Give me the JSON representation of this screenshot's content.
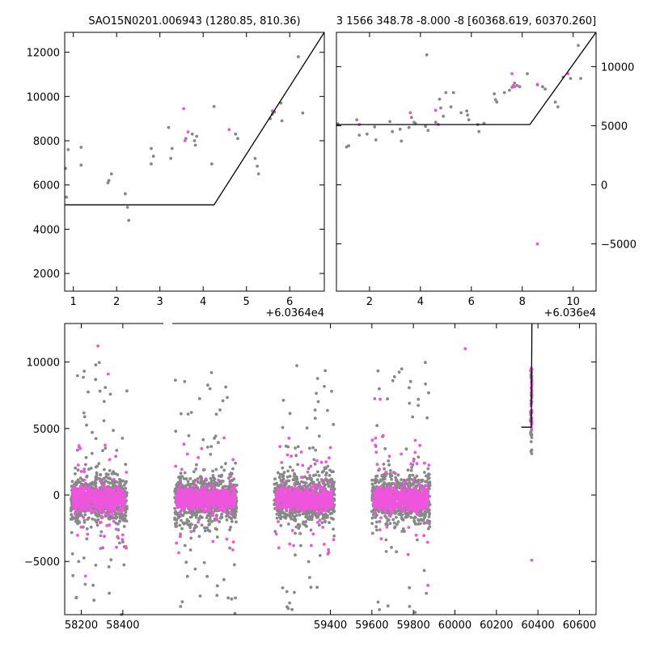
{
  "colors": {
    "grey": "#888888",
    "magenta": "#ee55dd",
    "line": "#000000"
  },
  "chart_data": [
    {
      "id": "top-left",
      "type": "scatter",
      "title": "SAO15N0201.006943 (1280.85, 810.36)",
      "xlim": [
        0.8,
        6.8
      ],
      "ylim": [
        1200,
        12900
      ],
      "offset_label": "+6.0364e4",
      "x_ticks": [
        1,
        2,
        3,
        4,
        5,
        6
      ],
      "x_tick_labels": [
        "1",
        "2",
        "3",
        "4",
        "5",
        "6"
      ],
      "y_ticks": [
        2000,
        4000,
        6000,
        8000,
        10000,
        12000
      ],
      "y_tick_labels": [
        "2000",
        "4000",
        "6000",
        "8000",
        "10000",
        "12000"
      ],
      "y_axis_side": "left",
      "grey_points": [
        [
          0.82,
          6750
        ],
        [
          0.84,
          5450
        ],
        [
          0.88,
          7600
        ],
        [
          1.18,
          7700
        ],
        [
          1.18,
          6900
        ],
        [
          1.8,
          6100
        ],
        [
          1.82,
          6200
        ],
        [
          1.88,
          6500
        ],
        [
          2.2,
          5600
        ],
        [
          2.25,
          5000
        ],
        [
          2.28,
          4400
        ],
        [
          2.8,
          7650
        ],
        [
          2.8,
          6950
        ],
        [
          2.85,
          7300
        ],
        [
          3.2,
          8600
        ],
        [
          3.25,
          7200
        ],
        [
          3.28,
          7650
        ],
        [
          3.6,
          8100
        ],
        [
          3.75,
          8300
        ],
        [
          3.8,
          8000
        ],
        [
          3.82,
          7800
        ],
        [
          3.85,
          8200
        ],
        [
          4.2,
          6950
        ],
        [
          4.25,
          9550
        ],
        [
          4.75,
          8300
        ],
        [
          4.8,
          8100
        ],
        [
          5.2,
          7200
        ],
        [
          5.25,
          6850
        ],
        [
          5.28,
          6500
        ],
        [
          5.55,
          9000
        ],
        [
          5.6,
          9200
        ],
        [
          5.65,
          9300
        ],
        [
          5.8,
          9700
        ],
        [
          5.82,
          8900
        ],
        [
          6.2,
          11800
        ],
        [
          6.3,
          9250
        ]
      ],
      "magenta_points": [
        [
          3.55,
          9450
        ],
        [
          3.58,
          8000
        ],
        [
          3.65,
          8400
        ],
        [
          4.6,
          8500
        ],
        [
          5.6,
          9350
        ]
      ],
      "fit_line": [
        [
          0.8,
          5100
        ],
        [
          4.25,
          5100
        ],
        [
          6.8,
          12900
        ]
      ]
    },
    {
      "id": "top-right",
      "type": "scatter",
      "title": "3 1566 348.78 -8.000 -8 [60368.619, 60370.260]",
      "xlim": [
        0.7,
        10.9
      ],
      "ylim": [
        -9000,
        12900
      ],
      "offset_label": "+6.036e4",
      "x_ticks": [
        2,
        4,
        6,
        8,
        10
      ],
      "x_tick_labels": [
        "2",
        "4",
        "6",
        "8",
        "10"
      ],
      "y_ticks": [
        -5000,
        0,
        5000,
        10000
      ],
      "y_tick_labels": [
        "−5000",
        "0",
        "5000",
        "10000"
      ],
      "y_axis_side": "right",
      "grey_points": [
        [
          0.75,
          5150
        ],
        [
          1.1,
          3200
        ],
        [
          1.18,
          3300
        ],
        [
          1.5,
          5500
        ],
        [
          1.6,
          4200
        ],
        [
          1.9,
          4300
        ],
        [
          2.2,
          4900
        ],
        [
          2.25,
          3800
        ],
        [
          2.8,
          5350
        ],
        [
          2.9,
          4500
        ],
        [
          3.2,
          4700
        ],
        [
          3.25,
          3700
        ],
        [
          3.55,
          4850
        ],
        [
          3.65,
          5700
        ],
        [
          3.75,
          5300
        ],
        [
          3.8,
          5200
        ],
        [
          4.2,
          4950
        ],
        [
          4.25,
          11000
        ],
        [
          4.3,
          4600
        ],
        [
          4.6,
          5300
        ],
        [
          4.75,
          7250
        ],
        [
          4.8,
          6500
        ],
        [
          4.9,
          5800
        ],
        [
          5.0,
          7800
        ],
        [
          5.2,
          6600
        ],
        [
          5.3,
          7800
        ],
        [
          5.6,
          6100
        ],
        [
          5.82,
          6250
        ],
        [
          5.85,
          5900
        ],
        [
          5.9,
          5500
        ],
        [
          6.25,
          5100
        ],
        [
          6.3,
          4500
        ],
        [
          6.5,
          5200
        ],
        [
          6.9,
          7700
        ],
        [
          6.95,
          7200
        ],
        [
          7.0,
          7000
        ],
        [
          7.3,
          7800
        ],
        [
          7.5,
          8000
        ],
        [
          7.6,
          8250
        ],
        [
          7.7,
          8600
        ],
        [
          7.8,
          8400
        ],
        [
          7.9,
          8300
        ],
        [
          8.2,
          9400
        ],
        [
          8.6,
          8450
        ],
        [
          8.8,
          8300
        ],
        [
          8.9,
          8100
        ],
        [
          9.3,
          7000
        ],
        [
          9.4,
          6600
        ],
        [
          9.6,
          9100
        ],
        [
          9.9,
          9000
        ],
        [
          10.2,
          11800
        ],
        [
          10.3,
          9000
        ]
      ],
      "magenta_points": [
        [
          1.6,
          5100
        ],
        [
          3.6,
          6100
        ],
        [
          4.6,
          6300
        ],
        [
          4.7,
          5100
        ],
        [
          7.6,
          9400
        ],
        [
          7.65,
          8400
        ],
        [
          7.7,
          8300
        ],
        [
          8.6,
          8500
        ],
        [
          9.8,
          9400
        ],
        [
          8.6,
          -5000
        ]
      ],
      "fit_line": [
        [
          0.7,
          5100
        ],
        [
          8.3,
          5100
        ],
        [
          10.9,
          12900
        ]
      ]
    },
    {
      "id": "bottom",
      "type": "scatter",
      "title": "",
      "xlim": [
        58120,
        60680
      ],
      "ylim": [
        -9000,
        12900
      ],
      "offset_label": "",
      "x_ticks": [
        58200,
        58400,
        59400,
        59600,
        59800,
        60000,
        60200,
        60400,
        60600
      ],
      "x_tick_labels": [
        "58200",
        "58400",
        "59400",
        "59600",
        "59800",
        "60000",
        "60200",
        "60400",
        "60600"
      ],
      "y_ticks": [
        -5000,
        0,
        5000,
        10000
      ],
      "y_tick_labels": [
        "−5000",
        "0",
        "5000",
        "10000"
      ],
      "y_axis_side": "left",
      "clusters": [
        {
          "x_range": [
            58150,
            58420
          ],
          "center": 58290
        },
        {
          "x_range": [
            58650,
            58950
          ],
          "center": 58800
        },
        {
          "x_range": [
            59130,
            59420
          ],
          "center": 59270
        },
        {
          "x_range": [
            59600,
            59880
          ],
          "center": 59740
        }
      ],
      "tail": {
        "x_range": [
          60364,
          60371
        ]
      },
      "outliers_magenta": [
        [
          58280,
          11200
        ],
        [
          58330,
          9100
        ],
        [
          58220,
          -6100
        ],
        [
          58400,
          -3000
        ],
        [
          59640,
          7200
        ],
        [
          59870,
          -6800
        ],
        [
          60370,
          -4900
        ],
        [
          60050,
          11000
        ]
      ],
      "fit_line": [
        [
          60320,
          5100
        ],
        [
          60368,
          5100
        ],
        [
          60371,
          12900
        ]
      ]
    }
  ]
}
